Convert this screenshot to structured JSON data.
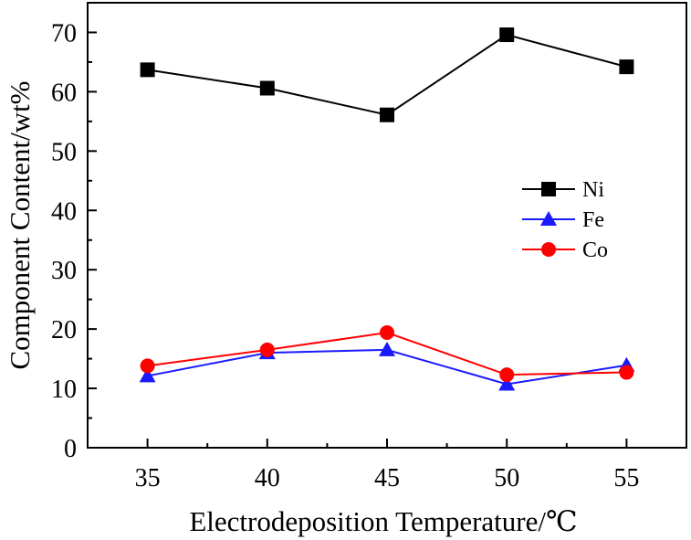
{
  "chart_data": {
    "type": "line",
    "title": "",
    "xlabel": "Electrodeposition Temperature/℃",
    "ylabel": "Component Content/wt%",
    "x": [
      35,
      40,
      45,
      50,
      55
    ],
    "xlim": [
      32.5,
      57.5
    ],
    "ylim": [
      0,
      75
    ],
    "xticks": [
      35,
      40,
      45,
      50,
      55
    ],
    "yticks": [
      0,
      10,
      20,
      30,
      40,
      50,
      60,
      70
    ],
    "grid": false,
    "legend_position": "center-right",
    "series": [
      {
        "name": "Ni",
        "values": [
          63.7,
          60.6,
          56.1,
          69.6,
          64.2
        ],
        "color": "#000000",
        "marker": "square"
      },
      {
        "name": "Fe",
        "values": [
          12.1,
          16.0,
          16.5,
          10.7,
          13.9
        ],
        "color": "#1a1aff",
        "marker": "triangle"
      },
      {
        "name": "Co",
        "values": [
          13.8,
          16.5,
          19.4,
          12.3,
          12.7
        ],
        "color": "#ff0000",
        "marker": "circle"
      }
    ]
  }
}
